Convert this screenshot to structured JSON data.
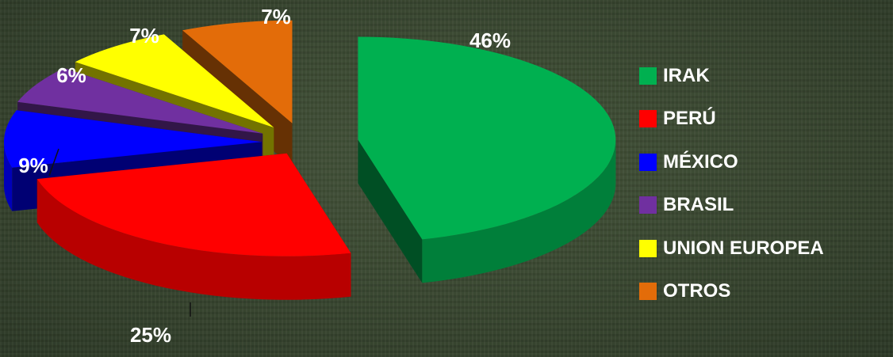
{
  "chart_data": {
    "type": "pie",
    "style": "3d-exploded",
    "categories": [
      "IRAK",
      "PERÚ",
      "MÉXICO",
      "BRASIL",
      "UNION EUROPEA",
      "OTROS"
    ],
    "values": [
      46,
      25,
      9,
      6,
      7,
      7
    ],
    "labels": [
      "46%",
      "25%",
      "9%",
      "6%",
      "7%",
      "7%"
    ],
    "colors": [
      "#00b050",
      "#ff0000",
      "#0000ff",
      "#7030a0",
      "#ffff00",
      "#e36c09"
    ],
    "legend_position": "right",
    "title": ""
  }
}
